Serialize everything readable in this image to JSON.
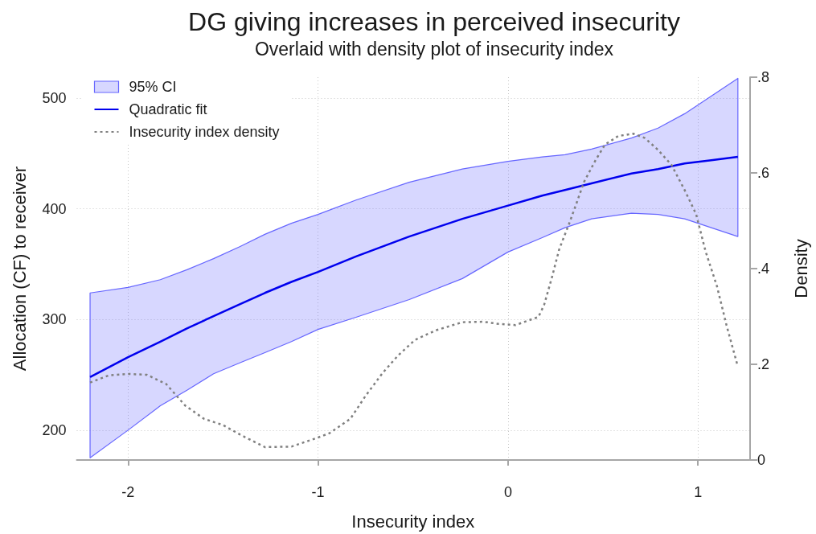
{
  "chart_data": {
    "type": "line",
    "title": "DG giving increases in perceived insecurity",
    "subtitle": "Overlaid with density plot of insecurity index",
    "xlabel": "Insecurity index",
    "ylabel": "Allocation (CF) to receiver",
    "y2label": "Density",
    "xlim": [
      -2.27,
      1.27
    ],
    "xticks": [
      -2,
      -1,
      0,
      1
    ],
    "ylim": [
      173,
      519
    ],
    "yticks": [
      200,
      300,
      400,
      500
    ],
    "y2lim": [
      0,
      0.8
    ],
    "y2ticks": [
      0,
      {
        "value": 0.2,
        "label": ".2"
      },
      {
        "value": 0.4,
        "label": ".4"
      },
      {
        "value": 0.6,
        "label": ".6"
      },
      {
        "value": 0.8,
        "label": ".8"
      }
    ],
    "grid": true,
    "legend": "top left",
    "marker": "none",
    "series": [
      {
        "name": "95% CI",
        "type": "area",
        "color": "#6666ff"
      },
      {
        "name": "Quadratic fit",
        "color": "#0000ee",
        "line_style": "solid",
        "x": [
          -2.2,
          -2,
          -1.83,
          -1.69,
          -1.55,
          -1.41,
          -1.28,
          -1.14,
          -1,
          -0.8,
          -0.52,
          -0.24,
          0,
          0.18,
          0.3,
          0.44,
          0.65,
          0.79,
          0.93,
          1.07,
          1.21
        ],
        "values": [
          248,
          266,
          280,
          292,
          303,
          314,
          324,
          334,
          343,
          357,
          375,
          391,
          403,
          412,
          417,
          423,
          432,
          436,
          441,
          444,
          447
        ],
        "upper": [
          324,
          329,
          336,
          345,
          355,
          366,
          377,
          387,
          395,
          408,
          424,
          436,
          443,
          447,
          449,
          454,
          464,
          473,
          486,
          502,
          518
        ],
        "lower": [
          175,
          200,
          222,
          236,
          251,
          261,
          270,
          280,
          291,
          302,
          318,
          337,
          361,
          374,
          383,
          391,
          396,
          395,
          391,
          383,
          375
        ]
      },
      {
        "name": "Insecurity index density",
        "axis": "y2",
        "color": "#808080",
        "line_style": "dotted",
        "x": [
          -2.2,
          -2.1,
          -2,
          -1.9,
          -1.8,
          -1.7,
          -1.6,
          -1.5,
          -1.41,
          -1.28,
          -1.14,
          -1,
          -0.94,
          -0.83,
          -0.75,
          -0.66,
          -0.58,
          -0.49,
          -0.38,
          -0.24,
          -0.13,
          -0.06,
          0.04,
          0.11,
          0.16,
          0.19,
          0.23,
          0.27,
          0.32,
          0.36,
          0.4,
          0.46,
          0.51,
          0.58,
          0.66,
          0.72,
          0.79,
          0.86,
          0.93,
          0.99,
          1.04,
          1.1,
          1.15,
          1.21
        ],
        "values": [
          0.162,
          0.177,
          0.18,
          0.178,
          0.159,
          0.114,
          0.086,
          0.073,
          0.053,
          0.027,
          0.028,
          0.047,
          0.056,
          0.086,
          0.134,
          0.182,
          0.218,
          0.251,
          0.271,
          0.288,
          0.289,
          0.285,
          0.282,
          0.292,
          0.299,
          0.324,
          0.38,
          0.441,
          0.492,
          0.536,
          0.581,
          0.626,
          0.659,
          0.677,
          0.682,
          0.673,
          0.648,
          0.617,
          0.564,
          0.514,
          0.436,
          0.363,
          0.282,
          0.195
        ]
      }
    ]
  }
}
